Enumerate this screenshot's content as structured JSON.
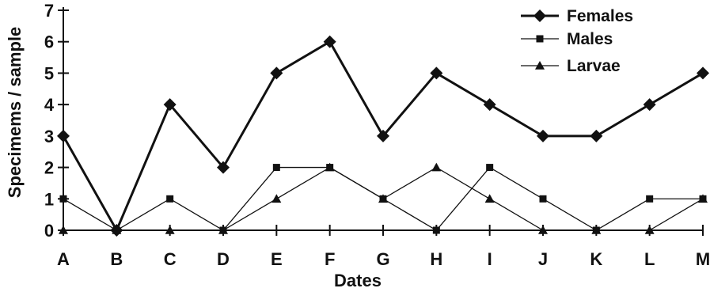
{
  "chart_data": {
    "type": "line",
    "xlabel": "Dates",
    "ylabel": "Specimems / sample",
    "categories": [
      "A",
      "B",
      "C",
      "D",
      "E",
      "F",
      "G",
      "H",
      "I",
      "J",
      "K",
      "L",
      "M"
    ],
    "ylim": [
      0,
      7
    ],
    "yticks": [
      0,
      1,
      2,
      3,
      4,
      5,
      6,
      7
    ],
    "grid": false,
    "legend": "top-right",
    "series": [
      {
        "name": "Females",
        "marker": "diamond",
        "color": "#111111",
        "values": [
          3,
          0,
          4,
          2,
          5,
          6,
          3,
          5,
          4,
          3,
          3,
          4,
          5
        ]
      },
      {
        "name": "Males",
        "marker": "square",
        "color": "#111111",
        "values": [
          1,
          0,
          1,
          0,
          2,
          2,
          1,
          0,
          2,
          1,
          0,
          1,
          1
        ]
      },
      {
        "name": "Larvae",
        "marker": "triangle",
        "color": "#111111",
        "values": [
          0,
          0,
          0,
          0,
          1,
          2,
          1,
          2,
          1,
          0,
          0,
          0,
          1
        ]
      }
    ]
  }
}
